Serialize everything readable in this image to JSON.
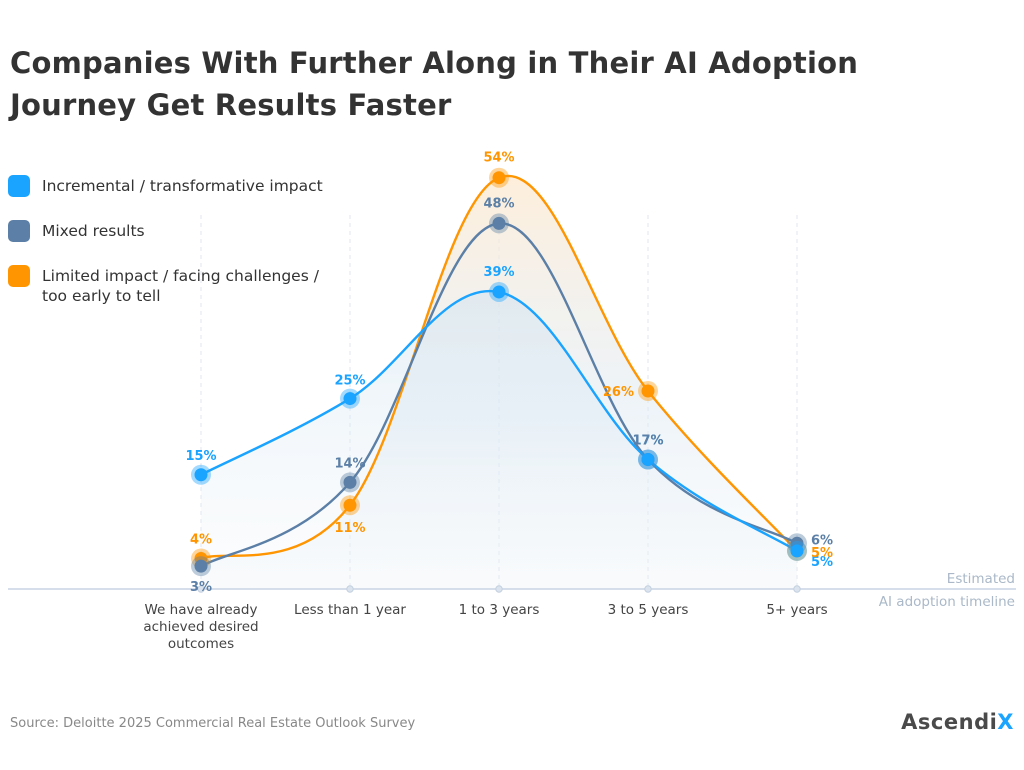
{
  "chart_data": {
    "type": "line",
    "title": "Companies With Further Along in Their AI Adoption Journey Get Results Faster",
    "xlabel": "Estimated\nAI adoption timeline",
    "ylabel": "",
    "ylim": [
      0,
      60
    ],
    "grid": "vertical dashed",
    "legend_position": "top-left",
    "categories": [
      "We have already achieved desired outcomes",
      "Less than 1 year",
      "1 to 3 years",
      "3 to 5 years",
      "5+ years"
    ],
    "series": [
      {
        "name": "Incremental / transformative impact",
        "color": "#1aa3ff",
        "values": [
          15,
          25,
          39,
          17,
          5
        ],
        "labels": [
          "15%",
          "25%",
          "39%",
          "17%",
          "5%"
        ]
      },
      {
        "name": "Mixed results",
        "color": "#5b7fa6",
        "values": [
          3,
          14,
          48,
          17,
          6
        ],
        "labels": [
          "3%",
          "14%",
          "48%",
          "17%",
          "6%"
        ]
      },
      {
        "name": "Limited impact / facing challenges /\ntoo early to tell",
        "color": "#ff9500",
        "values": [
          4,
          11,
          54,
          26,
          5
        ],
        "labels": [
          "4%",
          "11%",
          "54%",
          "26%",
          "5%"
        ]
      }
    ]
  },
  "footer": {
    "source": "Source: Deloitte 2025 Commercial Real Estate Outlook Survey",
    "logo_main": "Ascendi",
    "logo_accent": "X"
  }
}
